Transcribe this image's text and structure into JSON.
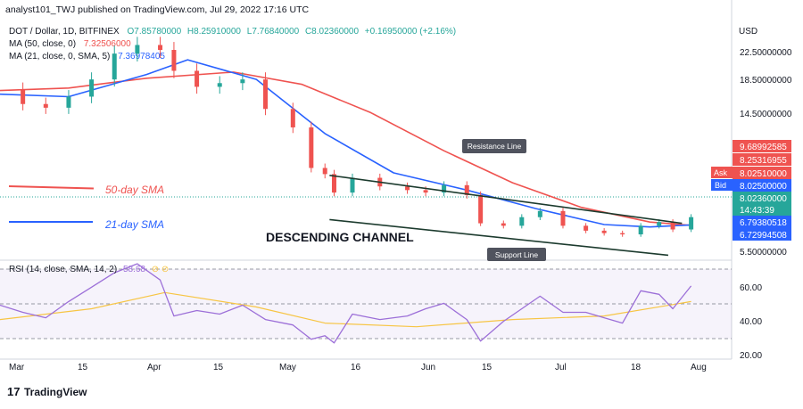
{
  "header": {
    "publisher_line": "analyst101_TWJ published on TradingView.com, Jul 29, 2022 17:16 UTC",
    "symbol_line": "DOT / Dollar, 1D, BITFINEX",
    "ohlc": {
      "open": "O7.85780000",
      "high": "H8.25910000",
      "low": "L7.76840000",
      "close": "C8.02360000",
      "change": "+0.16950000 (+2.16%)"
    },
    "ma50_label": "MA (50, close, 0)",
    "ma50_value": "7.32506000",
    "ma21_label": "MA (21, close, 0, SMA, 5)",
    "ma21_value": "7.36978405",
    "currency": "USD"
  },
  "annotations": {
    "sma50": "50-day SMA",
    "sma21": "21-day SMA",
    "channel": "DESCENDING CHANNEL",
    "resistance": "Resistance Line",
    "support": "Support Line"
  },
  "price_scale": {
    "ticks": [
      "22.50000000",
      "18.50000000",
      "14.50000000",
      "5.50000000"
    ],
    "tags": [
      {
        "text": "9.68992585",
        "color": "#ef5350"
      },
      {
        "text": "8.25316955",
        "color": "#ef5350"
      },
      {
        "text": "8.02510000",
        "color": "#ef5350",
        "label": "Ask"
      },
      {
        "text": "8.02500000",
        "color": "#2962ff",
        "label": "Bid"
      },
      {
        "text": "8.02360000",
        "color": "#26a69a"
      },
      {
        "text": "14:43:39",
        "color": "#26a69a"
      },
      {
        "text": "6.79380518",
        "color": "#2962ff"
      },
      {
        "text": "6.72994508",
        "color": "#2962ff"
      }
    ]
  },
  "rsi": {
    "label": "RSI (14, close, SMA, 14, 2)",
    "value": "58.68",
    "ticks": [
      "60.00",
      "40.00",
      "20.00"
    ]
  },
  "x_axis": {
    "labels": [
      "Mar",
      "15",
      "Apr",
      "15",
      "May",
      "16",
      "Jun",
      "15",
      "Jul",
      "18",
      "Aug"
    ]
  },
  "footer": {
    "brand": "TradingView"
  },
  "chart_data": {
    "type": "candlestick",
    "title": "DOT / Dollar, 1D, BITFINEX",
    "ylabel": "USD",
    "price_range": [
      4.5,
      24.5
    ],
    "date_range": [
      "2022-02-28",
      "2022-08-01"
    ],
    "colors": {
      "up": "#26a69a",
      "down": "#ef5350",
      "ma50": "#ef5350",
      "ma21": "#2962ff",
      "rsi": "#9c6fd8",
      "rsi_ma": "#f7c544",
      "trend": "#1c3b2e"
    },
    "close_series": {
      "dates": [
        "2022-02-28",
        "2022-03-05",
        "2022-03-10",
        "2022-03-15",
        "2022-03-20",
        "2022-03-25",
        "2022-03-30",
        "2022-04-04",
        "2022-04-07",
        "2022-04-12",
        "2022-04-17",
        "2022-04-22",
        "2022-04-27",
        "2022-05-03",
        "2022-05-07",
        "2022-05-10",
        "2022-05-12",
        "2022-05-16",
        "2022-05-22",
        "2022-05-28",
        "2022-06-01",
        "2022-06-05",
        "2022-06-10",
        "2022-06-13",
        "2022-06-18",
        "2022-06-22",
        "2022-06-26",
        "2022-07-01",
        "2022-07-06",
        "2022-07-10",
        "2022-07-14",
        "2022-07-18",
        "2022-07-22",
        "2022-07-25",
        "2022-07-29"
      ],
      "values": [
        18.4,
        17.2,
        16.9,
        17.8,
        19.2,
        21.3,
        22.0,
        21.6,
        19.9,
        18.6,
        18.9,
        19.2,
        16.8,
        15.3,
        12.0,
        11.5,
        10.0,
        11.2,
        10.5,
        10.2,
        10.0,
        10.6,
        9.8,
        7.5,
        7.3,
        8.0,
        8.5,
        7.3,
        6.9,
        6.7,
        6.6,
        7.3,
        7.6,
        7.0,
        8.0
      ]
    },
    "ma50": {
      "dates": [
        "2022-02-28",
        "2022-03-15",
        "2022-04-01",
        "2022-04-20",
        "2022-05-05",
        "2022-05-20",
        "2022-06-05",
        "2022-06-20",
        "2022-07-05",
        "2022-07-20",
        "2022-07-29"
      ],
      "values": [
        18.3,
        18.5,
        19.3,
        19.8,
        18.8,
        16.5,
        13.4,
        10.8,
        8.8,
        7.6,
        7.33
      ]
    },
    "ma21": {
      "dates": [
        "2022-02-28",
        "2022-03-15",
        "2022-04-01",
        "2022-04-10",
        "2022-04-25",
        "2022-05-10",
        "2022-05-25",
        "2022-06-10",
        "2022-06-25",
        "2022-07-10",
        "2022-07-20",
        "2022-07-29"
      ],
      "values": [
        18.0,
        17.8,
        19.6,
        20.8,
        19.2,
        14.8,
        11.6,
        10.2,
        8.7,
        7.4,
        7.2,
        7.37
      ]
    },
    "resistance_line": {
      "dates": [
        "2022-05-11",
        "2022-07-27"
      ],
      "values": [
        11.4,
        7.5
      ]
    },
    "support_line": {
      "dates": [
        "2022-05-11",
        "2022-07-24"
      ],
      "values": [
        7.8,
        4.9
      ]
    },
    "rsi_series": {
      "dates": [
        "2022-02-28",
        "2022-03-05",
        "2022-03-10",
        "2022-03-15",
        "2022-03-20",
        "2022-03-25",
        "2022-03-30",
        "2022-04-04",
        "2022-04-07",
        "2022-04-12",
        "2022-04-17",
        "2022-04-22",
        "2022-04-27",
        "2022-05-03",
        "2022-05-07",
        "2022-05-10",
        "2022-05-12",
        "2022-05-16",
        "2022-05-22",
        "2022-05-28",
        "2022-06-01",
        "2022-06-05",
        "2022-06-10",
        "2022-06-13",
        "2022-06-18",
        "2022-06-22",
        "2022-06-26",
        "2022-07-01",
        "2022-07-06",
        "2022-07-10",
        "2022-07-14",
        "2022-07-18",
        "2022-07-22",
        "2022-07-25",
        "2022-07-29"
      ],
      "values": [
        48,
        44,
        41,
        50,
        58,
        66,
        71,
        62,
        42,
        45,
        43,
        48,
        40,
        37,
        29,
        31,
        27,
        43,
        40,
        42,
        46,
        49,
        40,
        28,
        39,
        46,
        53,
        44,
        44,
        41,
        38,
        56,
        54,
        46,
        58.68
      ]
    },
    "rsi_ma": {
      "dates": [
        "2022-02-28",
        "2022-03-20",
        "2022-04-05",
        "2022-04-25",
        "2022-05-10",
        "2022-05-30",
        "2022-06-20",
        "2022-07-10",
        "2022-07-29"
      ],
      "values": [
        40,
        46,
        55,
        47,
        38,
        36,
        40,
        42,
        50
      ]
    },
    "rsi_levels": [
      70,
      50,
      30
    ],
    "rsi_range": [
      18,
      73
    ]
  }
}
